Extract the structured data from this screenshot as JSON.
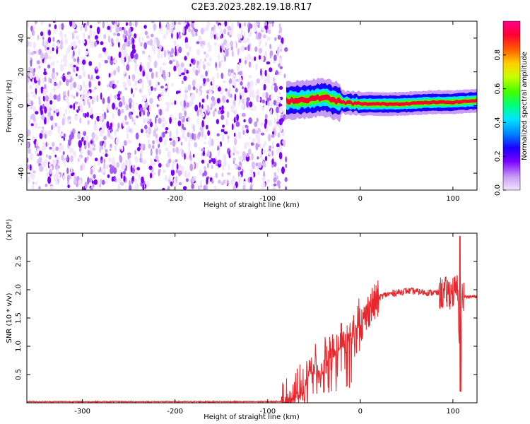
{
  "page": {
    "title": "C2E3.2023.282.19.18.R17"
  },
  "chart_data": [
    {
      "type": "heatmap",
      "xlabel": "Height of straight line (km)",
      "ylabel": "Frequency (Hz)",
      "xlim": [
        -360,
        126
      ],
      "ylim": [
        -50,
        50
      ],
      "xticks": [
        -300,
        -200,
        -100,
        0,
        100
      ],
      "yticks": [
        -40,
        -20,
        0,
        20,
        40
      ],
      "noise_region_x": [
        -360,
        -80
      ],
      "ridge_x": [
        -80,
        -60,
        -40,
        -20,
        0,
        20,
        40,
        60,
        80,
        100,
        126
      ],
      "ridge_freq": [
        3,
        3.5,
        5,
        2,
        1,
        1,
        1,
        1.5,
        2,
        2,
        3
      ],
      "colorbar": {
        "label": "Normalized spectral amplitude",
        "range": [
          0,
          1
        ],
        "ticks": [
          0.0,
          0.2,
          0.4,
          0.6,
          0.8
        ],
        "colormap": [
          "#f2e6ff",
          "#c89bf5",
          "#7b00ff",
          "#1a00ff",
          "#0080ff",
          "#00e5ff",
          "#00ff80",
          "#40ff00",
          "#c8ff00",
          "#ffd000",
          "#ff6000",
          "#ff0030",
          "#ff0090"
        ]
      }
    },
    {
      "type": "line",
      "xlabel": "Height of straight line (km)",
      "ylabel": "SNR (10 * v/v)",
      "multiplier_label": "(x10⁴)",
      "xlim": [
        -360,
        126
      ],
      "ylim": [
        0,
        3.0
      ],
      "xticks": [
        -300,
        -200,
        -100,
        0,
        100
      ],
      "yticks": [
        0.5,
        1.0,
        1.5,
        2.0,
        2.5
      ],
      "line_color": "#e8262b",
      "series": [
        {
          "x": [
            -360,
            -300,
            -200,
            -100,
            -80,
            -60,
            -55,
            -50,
            -45,
            -40,
            -35,
            -30,
            -25,
            -20,
            -15,
            -10,
            -5,
            0,
            5,
            10,
            15,
            20,
            25,
            30,
            40,
            50,
            60,
            70,
            80,
            90,
            95,
            100,
            105,
            108,
            110,
            115,
            120,
            126
          ],
          "y": [
            0.02,
            0.02,
            0.02,
            0.02,
            0.03,
            0.2,
            0.5,
            0.6,
            0.5,
            0.7,
            0.8,
            0.8,
            0.9,
            1.0,
            1.1,
            1.2,
            1.3,
            1.4,
            1.45,
            1.7,
            1.75,
            1.85,
            1.9,
            1.92,
            1.95,
            1.98,
            1.97,
            1.95,
            1.95,
            1.93,
            1.95,
            1.95,
            2.0,
            0.8,
            1.9,
            1.87,
            1.88,
            1.88
          ]
        }
      ]
    }
  ]
}
